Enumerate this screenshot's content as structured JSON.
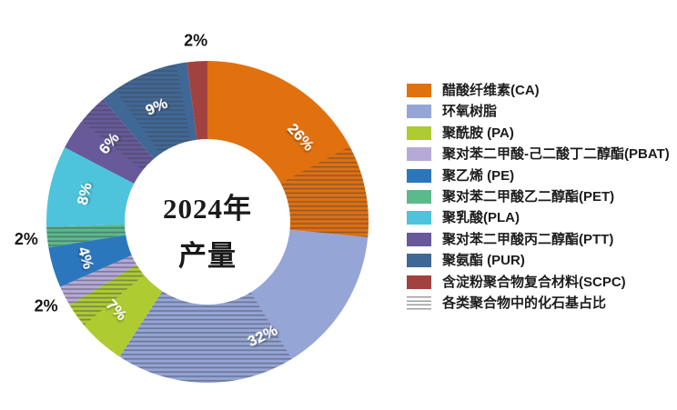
{
  "page": {
    "background": "#ffffff"
  },
  "chart_data": {
    "type": "donut",
    "center_title_line1": "2024年",
    "center_title_line2": "产量",
    "legend_position": "right",
    "slice_order": "clockwise-from-top",
    "hatch_color": "#3E4450",
    "slices": [
      {
        "label": "醋酸纤维素(CA)",
        "pct": 26,
        "pct_label": "26%",
        "color": "#E1700F",
        "hatch_span": [
          0.65,
          1
        ],
        "label_pos": "inside"
      },
      {
        "label": "环氧树脂",
        "pct": 32,
        "pct_label": "32%",
        "color": "#95A5D6",
        "hatch_span": [
          0.45,
          1
        ],
        "label_pos": "inside"
      },
      {
        "label": "聚酰胺 (PA)",
        "pct": 7,
        "pct_label": "7%",
        "color": "#AECB31",
        "hatch_span": [
          0.66,
          1
        ],
        "label_pos": "inside"
      },
      {
        "label": "聚对苯二甲酸-己二酸丁二醇酯(PBAT)",
        "pct": 2,
        "pct_label": "2%",
        "color": "#B7A9D7",
        "hatch_span": [
          0,
          1
        ],
        "label_pos": "outside"
      },
      {
        "label": "聚乙烯 (PE)",
        "pct": 4,
        "pct_label": "4%",
        "color": "#2B77BD",
        "hatch_span": null,
        "label_pos": "inside"
      },
      {
        "label": "聚对苯二甲酸乙二醇酯(PET)",
        "pct": 2,
        "pct_label": "2%",
        "color": "#5ABA8C",
        "hatch_span": [
          0,
          1
        ],
        "label_pos": "outside"
      },
      {
        "label": "聚乳酸(PLA)",
        "pct": 8,
        "pct_label": "8%",
        "color": "#4DC4DC",
        "hatch_span": null,
        "label_pos": "inside"
      },
      {
        "label": "聚对苯二甲酸丙二醇酯(PTT)",
        "pct": 6,
        "pct_label": "6%",
        "color": "#67599A",
        "hatch_span": [
          0.5,
          1
        ],
        "label_pos": "inside"
      },
      {
        "label": "聚氨酯 (PUR)",
        "pct": 9,
        "pct_label": "9%",
        "color": "#406896",
        "hatch_span": [
          0.17,
          0.88
        ],
        "label_pos": "inside"
      },
      {
        "label": "含淀粉聚合物复合材料(SCPC)",
        "pct": 2,
        "pct_label": "2%",
        "color": "#A24240",
        "hatch_span": null,
        "label_pos": "outside"
      }
    ],
    "hatch_legend_label": "各类聚合物中的化石基占比"
  }
}
